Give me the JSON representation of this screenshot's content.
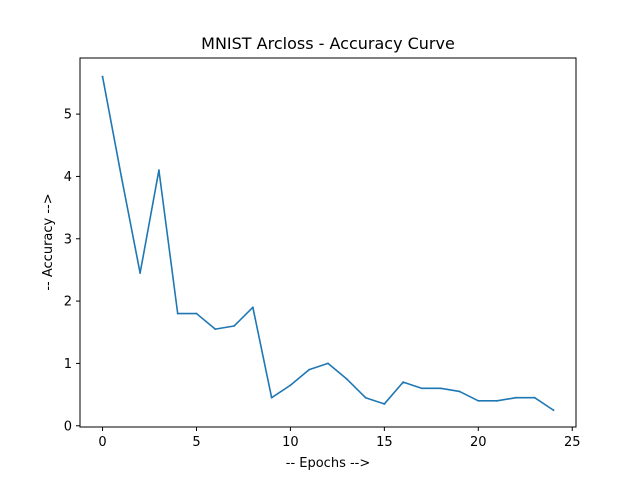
{
  "chart_data": {
    "type": "line",
    "title": "MNIST Arcloss - Accuracy Curve",
    "xlabel": "-- Epochs -->",
    "ylabel": "-- Accuracy -->",
    "xlim": [
      -1.2,
      25.2
    ],
    "ylim": [
      -0.02,
      5.9
    ],
    "xticks": [
      0,
      5,
      10,
      15,
      20,
      25
    ],
    "yticks": [
      0,
      1,
      2,
      3,
      4,
      5
    ],
    "grid": false,
    "series": [
      {
        "color": "#1f77b4",
        "x": [
          0,
          1,
          2,
          3,
          4,
          5,
          6,
          7,
          8,
          9,
          10,
          11,
          12,
          13,
          14,
          15,
          16,
          17,
          18,
          19,
          20,
          21,
          22,
          23,
          24
        ],
        "values": [
          5.6,
          4.0,
          2.45,
          4.1,
          1.8,
          1.8,
          1.55,
          1.6,
          1.9,
          0.45,
          0.65,
          0.9,
          1.0,
          0.75,
          0.45,
          0.35,
          0.7,
          0.6,
          0.6,
          0.55,
          0.4,
          0.4,
          0.45,
          0.45,
          0.25
        ]
      }
    ]
  }
}
